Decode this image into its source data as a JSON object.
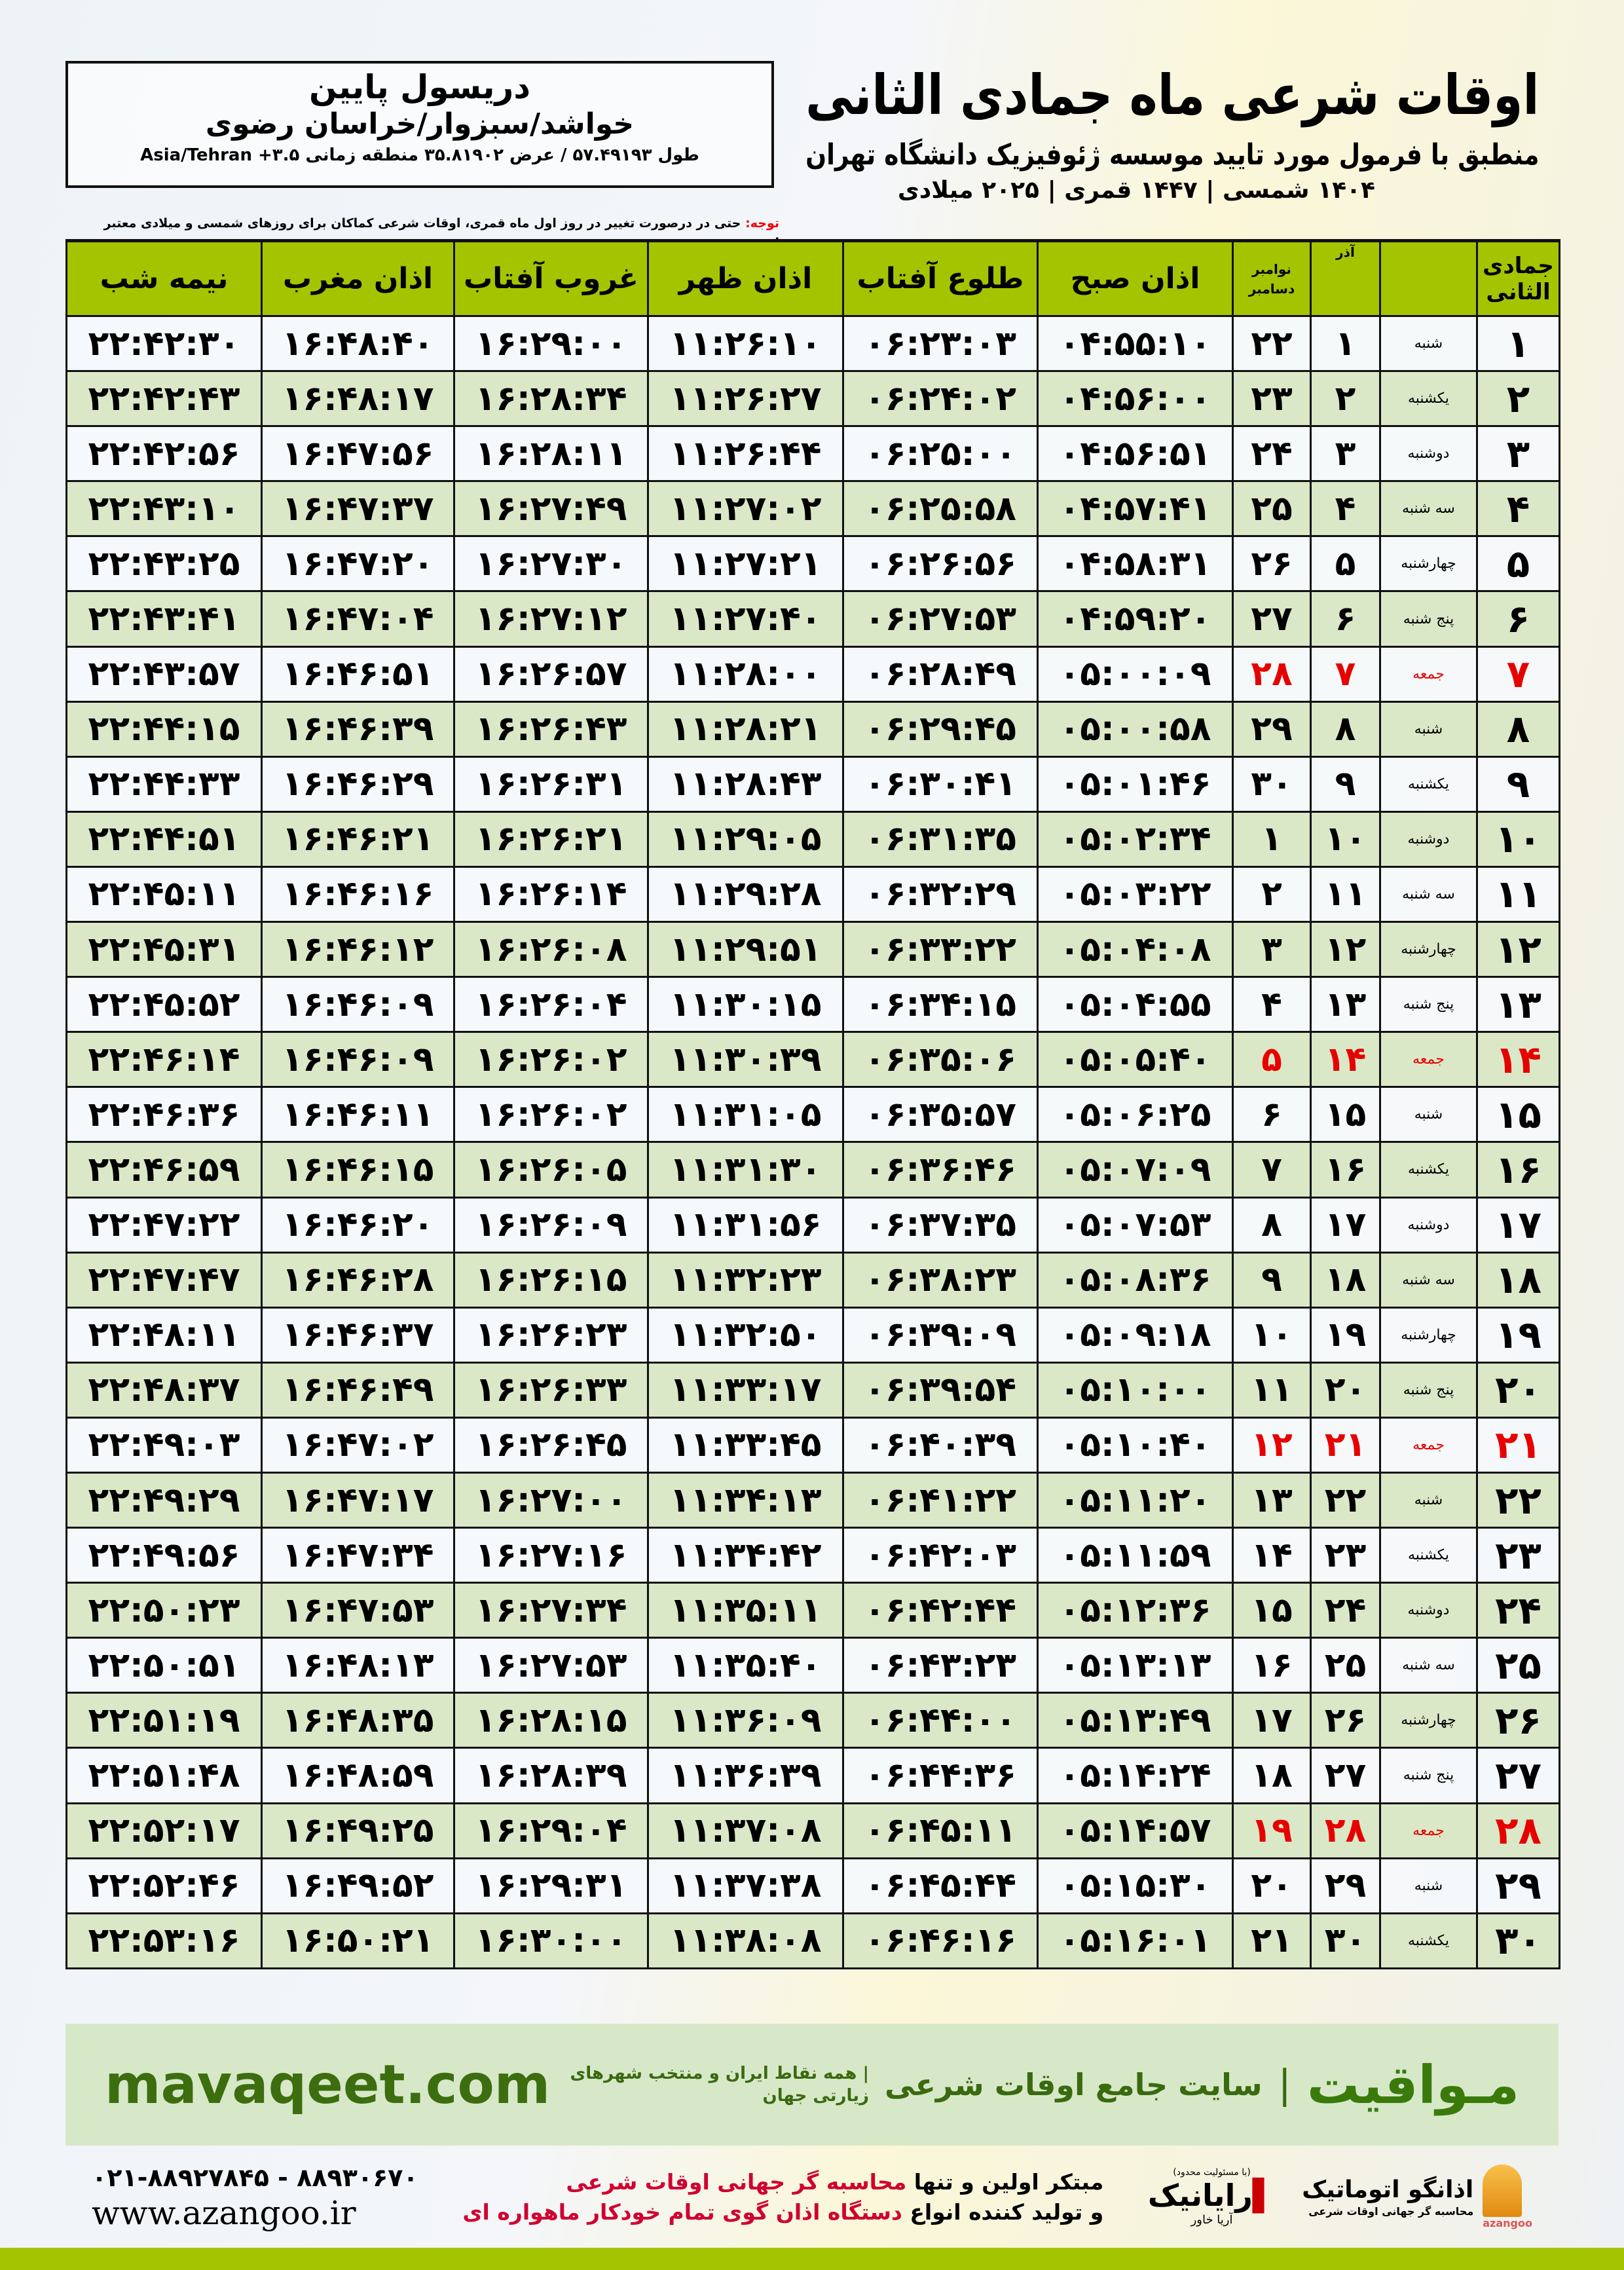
{
  "location": {
    "name": "دریسول پایین",
    "region": "خواشد/سبزوار/خراسان رضوی",
    "coords": "طول ۵۷.۴۹۱۹۳ / عرض ۳۵.۸۱۹۰۲ منطقه زمانی ۳.۵+ Asia/Tehran"
  },
  "header": {
    "title": "اوقات شرعی ماه جمادی الثانی",
    "subtitle": "منطبق با فرمول مورد تایید موسسه ژئوفیزیک دانشگاه تهران",
    "years": "۱۴۰۴ شمسی | ۱۴۴۷ قمری | ۲۰۲۵ میلادی"
  },
  "note": {
    "label": "توجه:",
    "text": " حتی در درصورت تغییر در روز اول ماه قمری، اوقات شرعی کماکان برای روزهای شمسی و میلادی معتبر است."
  },
  "columns": {
    "hijri": "جمادی الثانی",
    "azar": "آذر",
    "dec1": "نوامبر",
    "dec2": "دسامبر",
    "fajr": "اذان صبح",
    "sunrise": "طلوع آفتاب",
    "dhuhr": "اذان ظهر",
    "sunset": "غروب آفتاب",
    "maghrib": "اذان مغرب",
    "midnight": "نیمه شب"
  },
  "colors": {
    "header": "#a5c400",
    "row_alt": "#dbe8c8",
    "friday": "#e60000"
  },
  "rows": [
    [
      "۱",
      "شنبه",
      "۱",
      "۲۲",
      "۰۴:۵۵:۱۰",
      "۰۶:۲۳:۰۳",
      "۱۱:۲۶:۱۰",
      "۱۶:۲۹:۰۰",
      "۱۶:۴۸:۴۰",
      "۲۲:۴۲:۳۰"
    ],
    [
      "۲",
      "یکشنبه",
      "۲",
      "۲۳",
      "۰۴:۵۶:۰۰",
      "۰۶:۲۴:۰۲",
      "۱۱:۲۶:۲۷",
      "۱۶:۲۸:۳۴",
      "۱۶:۴۸:۱۷",
      "۲۲:۴۲:۴۳"
    ],
    [
      "۳",
      "دوشنبه",
      "۳",
      "۲۴",
      "۰۴:۵۶:۵۱",
      "۰۶:۲۵:۰۰",
      "۱۱:۲۶:۴۴",
      "۱۶:۲۸:۱۱",
      "۱۶:۴۷:۵۶",
      "۲۲:۴۲:۵۶"
    ],
    [
      "۴",
      "سه شنبه",
      "۴",
      "۲۵",
      "۰۴:۵۷:۴۱",
      "۰۶:۲۵:۵۸",
      "۱۱:۲۷:۰۲",
      "۱۶:۲۷:۴۹",
      "۱۶:۴۷:۳۷",
      "۲۲:۴۳:۱۰"
    ],
    [
      "۵",
      "چهارشنبه",
      "۵",
      "۲۶",
      "۰۴:۵۸:۳۱",
      "۰۶:۲۶:۵۶",
      "۱۱:۲۷:۲۱",
      "۱۶:۲۷:۳۰",
      "۱۶:۴۷:۲۰",
      "۲۲:۴۳:۲۵"
    ],
    [
      "۶",
      "پنج شنبه",
      "۶",
      "۲۷",
      "۰۴:۵۹:۲۰",
      "۰۶:۲۷:۵۳",
      "۱۱:۲۷:۴۰",
      "۱۶:۲۷:۱۲",
      "۱۶:۴۷:۰۴",
      "۲۲:۴۳:۴۱"
    ],
    [
      "۷",
      "جمعه",
      "۷",
      "۲۸",
      "۰۵:۰۰:۰۹",
      "۰۶:۲۸:۴۹",
      "۱۱:۲۸:۰۰",
      "۱۶:۲۶:۵۷",
      "۱۶:۴۶:۵۱",
      "۲۲:۴۳:۵۷"
    ],
    [
      "۸",
      "شنبه",
      "۸",
      "۲۹",
      "۰۵:۰۰:۵۸",
      "۰۶:۲۹:۴۵",
      "۱۱:۲۸:۲۱",
      "۱۶:۲۶:۴۳",
      "۱۶:۴۶:۳۹",
      "۲۲:۴۴:۱۵"
    ],
    [
      "۹",
      "یکشنبه",
      "۹",
      "۳۰",
      "۰۵:۰۱:۴۶",
      "۰۶:۳۰:۴۱",
      "۱۱:۲۸:۴۳",
      "۱۶:۲۶:۳۱",
      "۱۶:۴۶:۲۹",
      "۲۲:۴۴:۳۳"
    ],
    [
      "۱۰",
      "دوشنبه",
      "۱۰",
      "۱",
      "۰۵:۰۲:۳۴",
      "۰۶:۳۱:۳۵",
      "۱۱:۲۹:۰۵",
      "۱۶:۲۶:۲۱",
      "۱۶:۴۶:۲۱",
      "۲۲:۴۴:۵۱"
    ],
    [
      "۱۱",
      "سه شنبه",
      "۱۱",
      "۲",
      "۰۵:۰۳:۲۲",
      "۰۶:۳۲:۲۹",
      "۱۱:۲۹:۲۸",
      "۱۶:۲۶:۱۴",
      "۱۶:۴۶:۱۶",
      "۲۲:۴۵:۱۱"
    ],
    [
      "۱۲",
      "چهارشنبه",
      "۱۲",
      "۳",
      "۰۵:۰۴:۰۸",
      "۰۶:۳۳:۲۲",
      "۱۱:۲۹:۵۱",
      "۱۶:۲۶:۰۸",
      "۱۶:۴۶:۱۲",
      "۲۲:۴۵:۳۱"
    ],
    [
      "۱۳",
      "پنج شنبه",
      "۱۳",
      "۴",
      "۰۵:۰۴:۵۵",
      "۰۶:۳۴:۱۵",
      "۱۱:۳۰:۱۵",
      "۱۶:۲۶:۰۴",
      "۱۶:۴۶:۰۹",
      "۲۲:۴۵:۵۲"
    ],
    [
      "۱۴",
      "جمعه",
      "۱۴",
      "۵",
      "۰۵:۰۵:۴۰",
      "۰۶:۳۵:۰۶",
      "۱۱:۳۰:۳۹",
      "۱۶:۲۶:۰۲",
      "۱۶:۴۶:۰۹",
      "۲۲:۴۶:۱۴"
    ],
    [
      "۱۵",
      "شنبه",
      "۱۵",
      "۶",
      "۰۵:۰۶:۲۵",
      "۰۶:۳۵:۵۷",
      "۱۱:۳۱:۰۵",
      "۱۶:۲۶:۰۲",
      "۱۶:۴۶:۱۱",
      "۲۲:۴۶:۳۶"
    ],
    [
      "۱۶",
      "یکشنبه",
      "۱۶",
      "۷",
      "۰۵:۰۷:۰۹",
      "۰۶:۳۶:۴۶",
      "۱۱:۳۱:۳۰",
      "۱۶:۲۶:۰۵",
      "۱۶:۴۶:۱۵",
      "۲۲:۴۶:۵۹"
    ],
    [
      "۱۷",
      "دوشنبه",
      "۱۷",
      "۸",
      "۰۵:۰۷:۵۳",
      "۰۶:۳۷:۳۵",
      "۱۱:۳۱:۵۶",
      "۱۶:۲۶:۰۹",
      "۱۶:۴۶:۲۰",
      "۲۲:۴۷:۲۲"
    ],
    [
      "۱۸",
      "سه شنبه",
      "۱۸",
      "۹",
      "۰۵:۰۸:۳۶",
      "۰۶:۳۸:۲۳",
      "۱۱:۳۲:۲۳",
      "۱۶:۲۶:۱۵",
      "۱۶:۴۶:۲۸",
      "۲۲:۴۷:۴۷"
    ],
    [
      "۱۹",
      "چهارشنبه",
      "۱۹",
      "۱۰",
      "۰۵:۰۹:۱۸",
      "۰۶:۳۹:۰۹",
      "۱۱:۳۲:۵۰",
      "۱۶:۲۶:۲۳",
      "۱۶:۴۶:۳۷",
      "۲۲:۴۸:۱۱"
    ],
    [
      "۲۰",
      "پنج شنبه",
      "۲۰",
      "۱۱",
      "۰۵:۱۰:۰۰",
      "۰۶:۳۹:۵۴",
      "۱۱:۳۳:۱۷",
      "۱۶:۲۶:۳۳",
      "۱۶:۴۶:۴۹",
      "۲۲:۴۸:۳۷"
    ],
    [
      "۲۱",
      "جمعه",
      "۲۱",
      "۱۲",
      "۰۵:۱۰:۴۰",
      "۰۶:۴۰:۳۹",
      "۱۱:۳۳:۴۵",
      "۱۶:۲۶:۴۵",
      "۱۶:۴۷:۰۲",
      "۲۲:۴۹:۰۳"
    ],
    [
      "۲۲",
      "شنبه",
      "۲۲",
      "۱۳",
      "۰۵:۱۱:۲۰",
      "۰۶:۴۱:۲۲",
      "۱۱:۳۴:۱۳",
      "۱۶:۲۷:۰۰",
      "۱۶:۴۷:۱۷",
      "۲۲:۴۹:۲۹"
    ],
    [
      "۲۳",
      "یکشنبه",
      "۲۳",
      "۱۴",
      "۰۵:۱۱:۵۹",
      "۰۶:۴۲:۰۳",
      "۱۱:۳۴:۴۲",
      "۱۶:۲۷:۱۶",
      "۱۶:۴۷:۳۴",
      "۲۲:۴۹:۵۶"
    ],
    [
      "۲۴",
      "دوشنبه",
      "۲۴",
      "۱۵",
      "۰۵:۱۲:۳۶",
      "۰۶:۴۲:۴۴",
      "۱۱:۳۵:۱۱",
      "۱۶:۲۷:۳۴",
      "۱۶:۴۷:۵۳",
      "۲۲:۵۰:۲۳"
    ],
    [
      "۲۵",
      "سه شنبه",
      "۲۵",
      "۱۶",
      "۰۵:۱۳:۱۳",
      "۰۶:۴۳:۲۳",
      "۱۱:۳۵:۴۰",
      "۱۶:۲۷:۵۳",
      "۱۶:۴۸:۱۳",
      "۲۲:۵۰:۵۱"
    ],
    [
      "۲۶",
      "چهارشنبه",
      "۲۶",
      "۱۷",
      "۰۵:۱۳:۴۹",
      "۰۶:۴۴:۰۰",
      "۱۱:۳۶:۰۹",
      "۱۶:۲۸:۱۵",
      "۱۶:۴۸:۳۵",
      "۲۲:۵۱:۱۹"
    ],
    [
      "۲۷",
      "پنج شنبه",
      "۲۷",
      "۱۸",
      "۰۵:۱۴:۲۴",
      "۰۶:۴۴:۳۶",
      "۱۱:۳۶:۳۹",
      "۱۶:۲۸:۳۹",
      "۱۶:۴۸:۵۹",
      "۲۲:۵۱:۴۸"
    ],
    [
      "۲۸",
      "جمعه",
      "۲۸",
      "۱۹",
      "۰۵:۱۴:۵۷",
      "۰۶:۴۵:۱۱",
      "۱۱:۳۷:۰۸",
      "۱۶:۲۹:۰۴",
      "۱۶:۴۹:۲۵",
      "۲۲:۵۲:۱۷"
    ],
    [
      "۲۹",
      "شنبه",
      "۲۹",
      "۲۰",
      "۰۵:۱۵:۳۰",
      "۰۶:۴۵:۴۴",
      "۱۱:۳۷:۳۸",
      "۱۶:۲۹:۳۱",
      "۱۶:۴۹:۵۲",
      "۲۲:۵۲:۴۶"
    ],
    [
      "۳۰",
      "یکشنبه",
      "۳۰",
      "۲۱",
      "۰۵:۱۶:۰۱",
      "۰۶:۴۶:۱۶",
      "۱۱:۳۸:۰۸",
      "۱۶:۳۰:۰۰",
      "۱۶:۵۰:۲۱",
      "۲۲:۵۳:۱۶"
    ]
  ],
  "footer": {
    "brand": "مـواقیت",
    "sep": "|",
    "tagline": "سایت جامع اوقات شرعی",
    "tagline2": "| همه نقاط ایران و منتخب شهرهای زیارتی جهان",
    "site": "mavaqeet.com"
  },
  "bottom": {
    "phone": "۰۲۱-۸۸۹۲۷۸۴۵ - ۸۸۹۳۰۶۷۰",
    "web": "www.azangoo.ir",
    "ad1a": "مبتکر اولین و تنها ",
    "ad1b": "محاسبه گر جهانی اوقات شرعی",
    "ad2a": "و تولید کننده انواع ",
    "ad2b": "دستگاه اذان گوی تمام خودکار ماهواره ای",
    "logo1_small": "(با مسئولیت محدود)",
    "logo1_main": "رایانیک",
    "logo1_side": "آریا خاور",
    "logo2_main": "اذانگو اتوماتیک",
    "logo2_sub": "محاسبه گر جهانی اوقات شرعی",
    "logo2_en": "azangoo"
  }
}
